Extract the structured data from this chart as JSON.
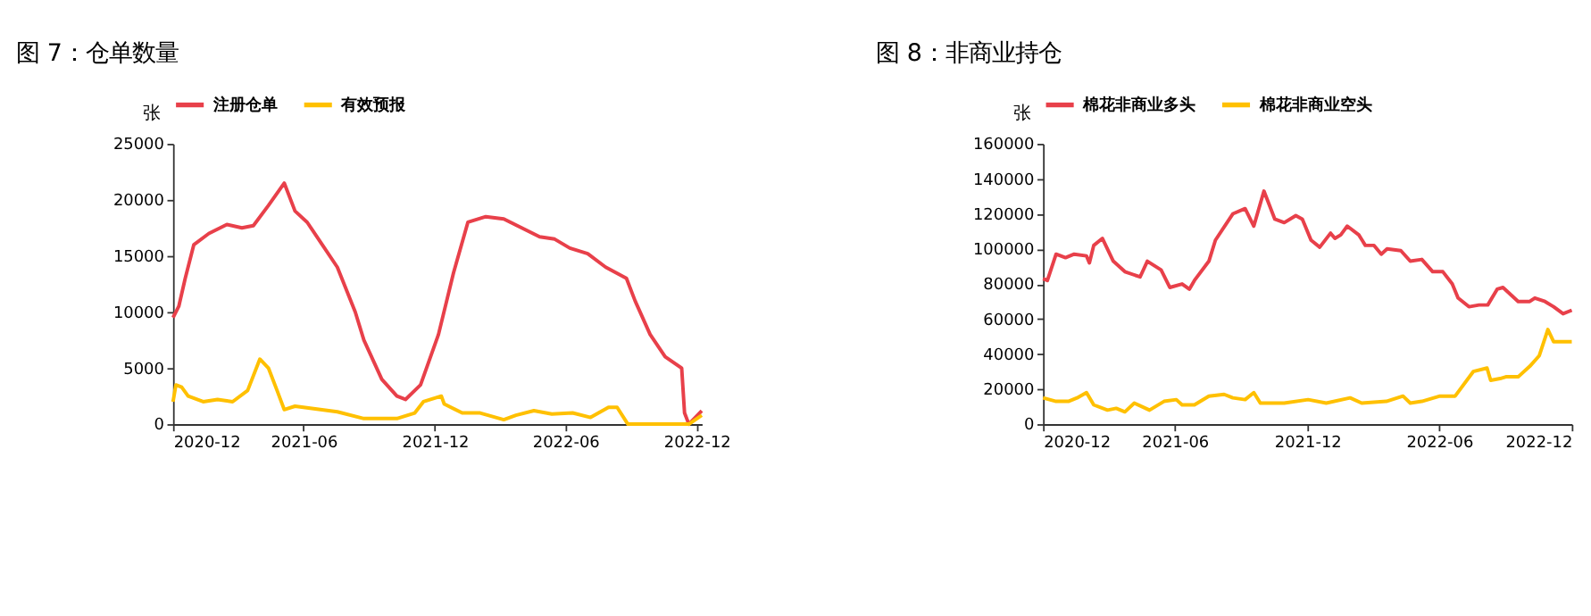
{
  "chart_data": [
    {
      "type": "line",
      "title": "图 7：仓单数量",
      "ylabel": "张",
      "legend": "top",
      "grid": false,
      "line_style": "solid",
      "marker": "none",
      "xlim": [
        "2020-12-01",
        "2022-12-08"
      ],
      "xticks": [
        "2020-12",
        "2021-06",
        "2021-12",
        "2022-06",
        "2022-12"
      ],
      "ylim": [
        0,
        25000
      ],
      "yticks": [
        0,
        5000,
        10000,
        15000,
        20000,
        25000
      ],
      "series": [
        {
          "name": "注册仓单",
          "color": "#e8404a",
          "x": [
            "2020-12-01",
            "2020-12-09",
            "2020-12-18",
            "2020-12-30",
            "2021-01-20",
            "2021-02-14",
            "2021-03-07",
            "2021-03-23",
            "2021-04-13",
            "2021-05-05",
            "2021-05-20",
            "2021-06-06",
            "2021-06-27",
            "2021-07-18",
            "2021-08-12",
            "2021-08-24",
            "2021-09-18",
            "2021-10-09",
            "2021-10-21",
            "2021-11-11",
            "2021-12-06",
            "2021-12-27",
            "2022-01-16",
            "2022-02-10",
            "2022-03-07",
            "2022-04-01",
            "2022-04-26",
            "2022-05-17",
            "2022-06-07",
            "2022-07-02",
            "2022-07-27",
            "2022-08-25",
            "2022-09-06",
            "2022-09-27",
            "2022-10-18",
            "2022-11-10",
            "2022-11-14",
            "2022-11-20",
            "2022-12-08"
          ],
          "values": [
            9500,
            10500,
            13000,
            16000,
            17000,
            17800,
            17500,
            17700,
            19500,
            21500,
            19000,
            18000,
            16000,
            14000,
            10000,
            7500,
            4000,
            2500,
            2200,
            3500,
            8000,
            13500,
            18000,
            18500,
            18300,
            17500,
            16700,
            16500,
            15700,
            15200,
            14000,
            13000,
            11000,
            8000,
            6000,
            5000,
            1000,
            0,
            1200
          ]
        },
        {
          "name": "有效预报",
          "color": "#ffc000",
          "x": [
            "2020-12-01",
            "2020-12-05",
            "2020-12-13",
            "2020-12-22",
            "2021-01-12",
            "2021-02-01",
            "2021-02-22",
            "2021-03-15",
            "2021-04-01",
            "2021-04-13",
            "2021-04-25",
            "2021-05-05",
            "2021-05-20",
            "2021-07-18",
            "2021-08-24",
            "2021-10-09",
            "2021-11-03",
            "2021-11-15",
            "2021-12-10",
            "2021-12-14",
            "2022-01-08",
            "2022-02-02",
            "2022-03-07",
            "2022-03-24",
            "2022-04-18",
            "2022-05-13",
            "2022-06-11",
            "2022-07-06",
            "2022-07-31",
            "2022-08-12",
            "2022-08-27",
            "2022-11-20",
            "2022-12-08"
          ],
          "values": [
            2000,
            3500,
            3300,
            2500,
            2000,
            2200,
            2000,
            3000,
            5800,
            5000,
            3000,
            1300,
            1600,
            1100,
            500,
            500,
            1000,
            2000,
            2500,
            1800,
            1000,
            1000,
            400,
            800,
            1200,
            900,
            1000,
            600,
            1500,
            1500,
            0,
            0,
            800
          ]
        }
      ]
    },
    {
      "type": "line",
      "title": "图 8：非商业持仓",
      "ylabel": "张",
      "legend": "top",
      "grid": false,
      "line_style": "solid",
      "marker": "none",
      "xlim": [
        "2020-12-01",
        "2022-12-01"
      ],
      "xticks": [
        "2020-12",
        "2021-06",
        "2021-12",
        "2022-06",
        "2022-12"
      ],
      "ylim": [
        0,
        160000
      ],
      "yticks": [
        0,
        20000,
        40000,
        60000,
        80000,
        100000,
        120000,
        140000,
        160000
      ],
      "series": [
        {
          "name": "棉花非商业多头",
          "color": "#e8404a",
          "x": [
            "2020-12-01",
            "2020-12-07",
            "2020-12-19",
            "2021-01-01",
            "2021-01-13",
            "2021-01-30",
            "2021-02-03",
            "2021-02-09",
            "2021-02-21",
            "2021-03-08",
            "2021-03-24",
            "2021-04-14",
            "2021-04-24",
            "2021-05-13",
            "2021-05-25",
            "2021-06-11",
            "2021-06-21",
            "2021-06-28",
            "2021-07-18",
            "2021-07-27",
            "2021-08-20",
            "2021-09-06",
            "2021-09-18",
            "2021-10-02",
            "2021-10-17",
            "2021-10-30",
            "2021-11-15",
            "2021-11-24",
            "2021-12-06",
            "2021-12-18",
            "2022-01-02",
            "2022-01-08",
            "2022-01-16",
            "2022-01-25",
            "2022-02-10",
            "2022-02-19",
            "2022-03-03",
            "2022-03-13",
            "2022-03-21",
            "2022-04-09",
            "2022-04-22",
            "2022-05-08",
            "2022-05-23",
            "2022-06-06",
            "2022-06-19",
            "2022-06-27",
            "2022-07-12",
            "2022-07-26",
            "2022-08-07",
            "2022-08-20",
            "2022-08-28",
            "2022-09-18",
            "2022-10-04",
            "2022-10-11",
            "2022-10-25",
            "2022-11-06",
            "2022-11-19",
            "2022-12-01"
          ],
          "values": [
            83000,
            82000,
            97000,
            95000,
            97000,
            96000,
            92000,
            102000,
            106000,
            93000,
            87000,
            84000,
            93000,
            88000,
            78000,
            80000,
            77000,
            82000,
            93000,
            105000,
            120000,
            123000,
            113000,
            133000,
            117000,
            115000,
            119000,
            117000,
            105000,
            101000,
            109000,
            106000,
            108000,
            113000,
            108000,
            102000,
            102000,
            97000,
            100000,
            99000,
            93000,
            94000,
            87000,
            87000,
            80000,
            72000,
            67000,
            68000,
            68000,
            77000,
            78000,
            70000,
            70000,
            72000,
            70000,
            67000,
            63000,
            65000
          ]
        },
        {
          "name": "棉花非商业空头",
          "color": "#ffc000",
          "x": [
            "2020-12-01",
            "2020-12-19",
            "2021-01-05",
            "2021-01-17",
            "2021-01-30",
            "2021-02-09",
            "2021-02-28",
            "2021-03-12",
            "2021-03-24",
            "2021-04-06",
            "2021-04-27",
            "2021-05-17",
            "2021-06-03",
            "2021-06-11",
            "2021-06-28",
            "2021-07-18",
            "2021-08-08",
            "2021-08-20",
            "2021-09-06",
            "2021-09-18",
            "2021-09-27",
            "2021-10-30",
            "2021-12-02",
            "2021-12-27",
            "2022-01-29",
            "2022-02-14",
            "2022-03-20",
            "2022-04-12",
            "2022-04-22",
            "2022-05-08",
            "2022-06-02",
            "2022-06-23",
            "2022-07-18",
            "2022-08-06",
            "2022-08-11",
            "2022-08-24",
            "2022-09-01",
            "2022-09-18",
            "2022-10-04",
            "2022-10-17",
            "2022-10-29",
            "2022-11-06",
            "2022-11-19",
            "2022-12-01"
          ],
          "values": [
            15000,
            13000,
            13000,
            15000,
            18000,
            11000,
            8000,
            9000,
            7000,
            12000,
            8000,
            13000,
            14000,
            11000,
            11000,
            16000,
            17000,
            15000,
            14000,
            18000,
            12000,
            12000,
            14000,
            12000,
            15000,
            12000,
            13000,
            16000,
            12000,
            13000,
            16000,
            16000,
            30000,
            32000,
            25000,
            26000,
            27000,
            27000,
            33000,
            39000,
            54000,
            47000,
            47000,
            47000
          ]
        }
      ]
    }
  ]
}
